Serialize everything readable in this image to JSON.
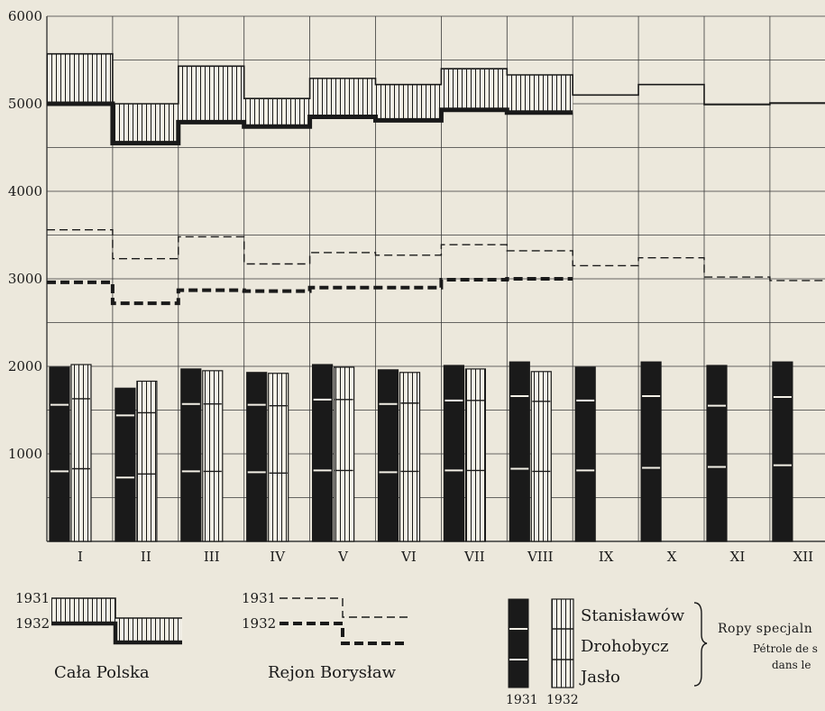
{
  "chart_data": {
    "type": "line+stacked-bar",
    "title": "",
    "xlabel": "",
    "ylabel": "",
    "ylim": [
      0,
      6000
    ],
    "yticks": [
      1000,
      2000,
      3000,
      4000,
      5000,
      6000
    ],
    "grid": true,
    "categories": [
      "I",
      "II",
      "III",
      "IV",
      "V",
      "VI",
      "VII",
      "VIII",
      "IX",
      "X",
      "XI",
      "XII"
    ],
    "step_series": [
      {
        "group": "Cała Polska",
        "year": "1931",
        "values": [
          5570,
          5000,
          5430,
          5060,
          5290,
          5220,
          5400,
          5330,
          5100,
          5220,
          4990,
          5010
        ]
      },
      {
        "group": "Cała Polska",
        "year": "1932",
        "values": [
          5000,
          4550,
          4790,
          4740,
          4850,
          4810,
          4930,
          4900,
          null,
          null,
          null,
          null
        ]
      },
      {
        "group": "Rejon Borysław",
        "year": "1931",
        "values": [
          3560,
          3230,
          3480,
          3170,
          3300,
          3270,
          3390,
          3320,
          3150,
          3240,
          3020,
          2980
        ]
      },
      {
        "group": "Rejon Borysław",
        "year": "1932",
        "values": [
          2960,
          2720,
          2870,
          2860,
          2900,
          2900,
          2990,
          3000,
          null,
          null,
          null,
          null
        ]
      }
    ],
    "bar_series": [
      {
        "year": "1931",
        "total": [
          1990,
          1750,
          1970,
          1930,
          2020,
          1960,
          2010,
          2050,
          1990,
          2050,
          2010,
          2050
        ],
        "segments": [
          {
            "name": "Jasło",
            "values": [
              800,
              730,
              800,
              790,
              810,
              790,
              810,
              830,
              810,
              840,
              850,
              870
            ]
          },
          {
            "name": "Drohobycz",
            "values": [
              760,
              710,
              770,
              770,
              810,
              780,
              800,
              830,
              800,
              820,
              700,
              780
            ]
          },
          {
            "name": "Stanisławów",
            "values": [
              430,
              310,
              400,
              370,
              400,
              390,
              400,
              390,
              380,
              390,
              460,
              400
            ]
          }
        ]
      },
      {
        "year": "1932",
        "total": [
          2020,
          1830,
          1950,
          1920,
          1990,
          1930,
          1970,
          1940,
          null,
          null,
          null,
          null
        ],
        "segments": [
          {
            "name": "Jasło",
            "values": [
              830,
              770,
              800,
              780,
              810,
              800,
              810,
              800,
              null,
              null,
              null,
              null
            ]
          },
          {
            "name": "Drohobycz",
            "values": [
              800,
              700,
              770,
              770,
              810,
              780,
              800,
              800,
              null,
              null,
              null,
              null
            ]
          },
          {
            "name": "Stanisławów",
            "values": [
              390,
              360,
              380,
              370,
              370,
              350,
              360,
              340,
              null,
              null,
              null,
              null
            ]
          }
        ]
      }
    ],
    "legend": {
      "cala_polska": {
        "label_1931": "1931",
        "label_1932": "1932",
        "caption": "Cała Polska"
      },
      "rejon_boryslaw": {
        "label_1931": "1931",
        "label_1932": "1932",
        "caption": "Rejon Borysław"
      },
      "bars": {
        "items": [
          "Stanisławów",
          "Drohobycz",
          "Jasło"
        ],
        "year_1931": "1931",
        "year_1932": "1932",
        "note_line1": "Ropy specjaln",
        "note_line2": "Pétrole de s",
        "note_line3": "dans le"
      }
    },
    "colors": {
      "background": "#ece8dc",
      "ink": "#1a1a1a",
      "grid": "#3a3a3a"
    }
  }
}
